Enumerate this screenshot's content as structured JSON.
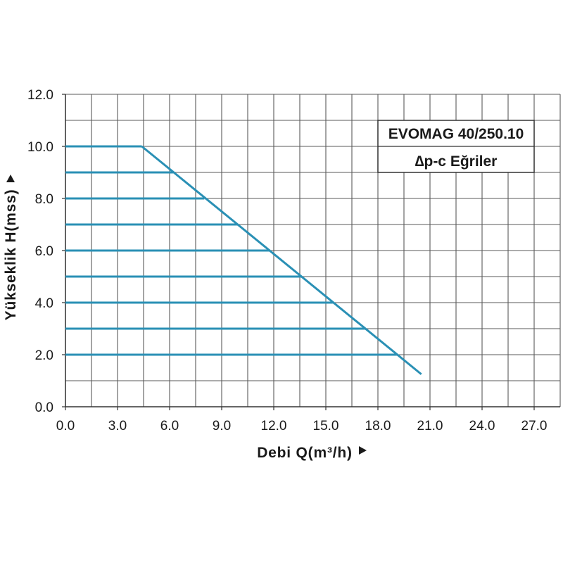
{
  "chart_data": {
    "type": "line",
    "title": "EVOMAG 40/250.10",
    "subtitle": "∆p-c Eğriler",
    "xlabel": "Debi Q(m³/h)",
    "ylabel": "Yükseklik H(mss)",
    "xlim": [
      0,
      28.5
    ],
    "ylim": [
      0,
      12
    ],
    "x_grid_step": 1.5,
    "y_grid_step": 1,
    "grid": true,
    "title_box_position": "top-right",
    "line_color": "#2a90b5",
    "x_ticks": [
      {
        "value": 0,
        "label": "0.0"
      },
      {
        "value": 3,
        "label": "3.0"
      },
      {
        "value": 6,
        "label": "6.0"
      },
      {
        "value": 9,
        "label": "9.0"
      },
      {
        "value": 12,
        "label": "12.0"
      },
      {
        "value": 15,
        "label": "15.0"
      },
      {
        "value": 18,
        "label": "18.0"
      },
      {
        "value": 21,
        "label": "21.0"
      },
      {
        "value": 24,
        "label": "24.0"
      },
      {
        "value": 27,
        "label": "27.0"
      }
    ],
    "y_ticks": [
      {
        "value": 0,
        "label": "0.0"
      },
      {
        "value": 2,
        "label": "2.0"
      },
      {
        "value": 4,
        "label": "4.0"
      },
      {
        "value": 6,
        "label": "6.0"
      },
      {
        "value": 8,
        "label": "8.0"
      },
      {
        "value": 10,
        "label": "10.0"
      },
      {
        "value": 12,
        "label": "12.0"
      }
    ],
    "series": [
      {
        "points": [
          [
            0,
            10
          ],
          [
            4.4,
            10
          ]
        ]
      },
      {
        "points": [
          [
            0,
            9
          ],
          [
            6.2,
            9
          ]
        ]
      },
      {
        "points": [
          [
            0,
            8
          ],
          [
            8.0,
            8
          ]
        ]
      },
      {
        "points": [
          [
            0,
            7
          ],
          [
            9.9,
            7
          ]
        ]
      },
      {
        "points": [
          [
            0,
            6
          ],
          [
            11.8,
            6
          ]
        ]
      },
      {
        "points": [
          [
            0,
            5
          ],
          [
            13.6,
            5
          ]
        ]
      },
      {
        "points": [
          [
            0,
            4
          ],
          [
            15.4,
            4
          ]
        ]
      },
      {
        "points": [
          [
            0,
            3
          ],
          [
            17.3,
            3
          ]
        ]
      },
      {
        "points": [
          [
            0,
            2
          ],
          [
            19.1,
            2
          ]
        ]
      },
      {
        "points": [
          [
            4.4,
            10
          ],
          [
            20.5,
            1.25
          ]
        ]
      }
    ]
  }
}
